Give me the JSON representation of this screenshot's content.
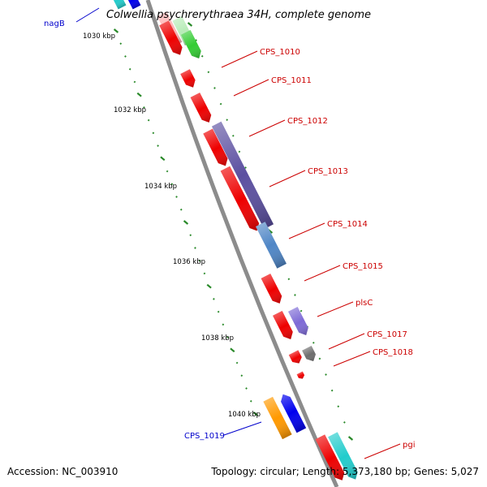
{
  "title": "Colwellia psychrerythraea 34H, complete genome",
  "accession": "Accession: NC_003910",
  "topology": "Topology: circular; Length: 5,373,180 bp; Genes: 5,027",
  "ticks": [
    "1030 kbp",
    "1032 kbp",
    "1034 kbp",
    "1036 kbp",
    "1038 kbp",
    "1040 kbp"
  ],
  "gene_labels": [
    {
      "text": "nagB",
      "color": "#0000cc"
    },
    {
      "text": "CPS_1010",
      "color": "#cc0000"
    },
    {
      "text": "CPS_1011",
      "color": "#cc0000"
    },
    {
      "text": "CPS_1012",
      "color": "#cc0000"
    },
    {
      "text": "CPS_1013",
      "color": "#cc0000"
    },
    {
      "text": "CPS_1014",
      "color": "#cc0000"
    },
    {
      "text": "CPS_1015",
      "color": "#cc0000"
    },
    {
      "text": "plsC",
      "color": "#cc0000"
    },
    {
      "text": "CPS_1017",
      "color": "#cc0000"
    },
    {
      "text": "CPS_1018",
      "color": "#cc0000"
    },
    {
      "text": "CPS_1019",
      "color": "#0000cc"
    },
    {
      "text": "pgi",
      "color": "#cc0000"
    }
  ],
  "colors": {
    "backbone": "#8c8c8c",
    "tick": "#2a8a2a",
    "red_gene": "#ee0000",
    "green_gene": "#33cc33",
    "purple_gene": "#5b4fa0",
    "steelblue_gene": "#4f86c6",
    "lavender_gene": "#7d6ad6",
    "gray_gene": "#6e6e6e",
    "orange_gene": "#ff9900",
    "blue_gene": "#0000ee",
    "cyan_gene": "#22cccc",
    "pink_gene": "#ffb3b3",
    "pale_green_gene": "#b8ecb8"
  }
}
